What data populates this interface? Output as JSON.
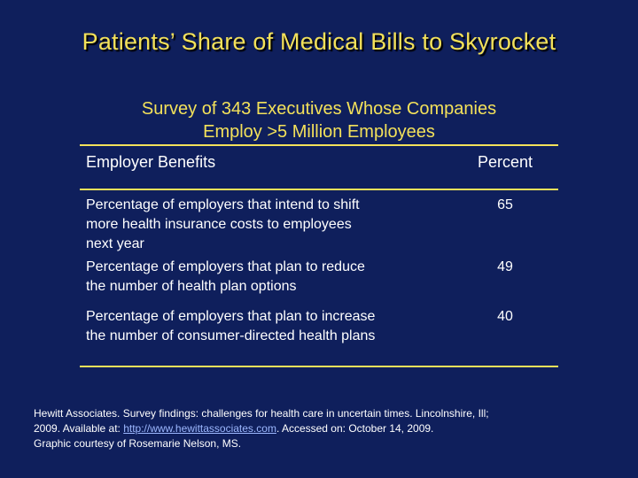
{
  "slide": {
    "title": "Patients’ Share of Medical Bills to Skyrocket",
    "subtitle_line1": "Survey of 343 Executives Whose Companies",
    "subtitle_line2": "Employ >5 Million Employees"
  },
  "table": {
    "headers": {
      "benefits": "Employer Benefits",
      "percent": "Percent"
    },
    "rows": [
      {
        "lines": [
          "Percentage of employers that intend to shift",
          "more health insurance costs to employees",
          "next year"
        ],
        "value": "65"
      },
      {
        "lines": [
          "Percentage of employers that plan to reduce",
          "the number of health plan options"
        ],
        "value": "49"
      },
      {
        "lines": [
          "Percentage of employers that plan to increase",
          "the number of consumer-directed health plans"
        ],
        "value": "40"
      }
    ]
  },
  "citation": {
    "line1": "Hewitt Associates. Survey findings: challenges for health care in uncertain times. Lincolnshire, Ill;",
    "line2_prefix": "2009. Available at: ",
    "link": "http://www.hewittassociates.com",
    "line2_suffix": ". Accessed on: October 14, 2009.",
    "line3": "Graphic courtesy of Rosemarie Nelson, MS."
  },
  "colors": {
    "background": "#0f1f5c",
    "accent": "#f3e15a",
    "text": "#ffffff",
    "link": "#9db8ff"
  }
}
